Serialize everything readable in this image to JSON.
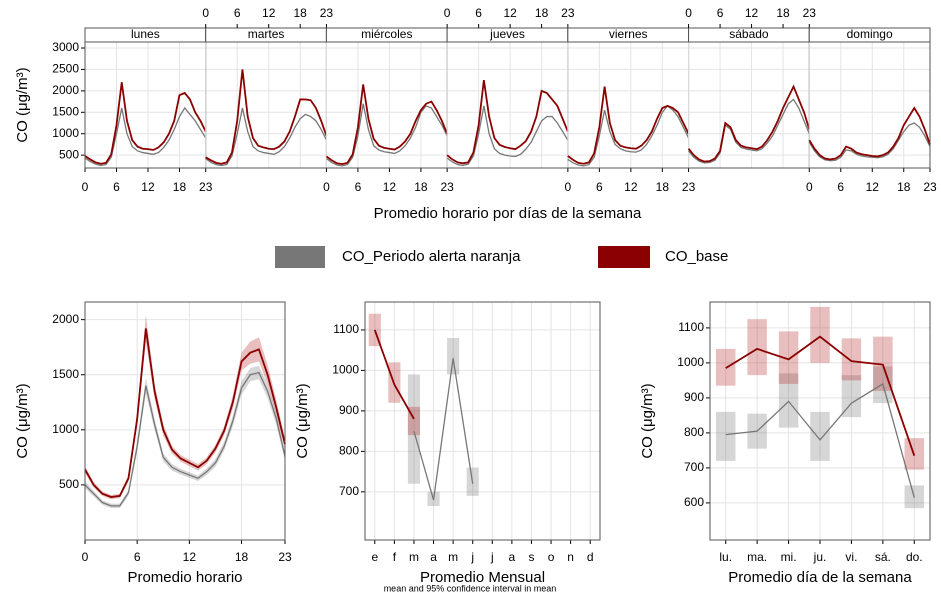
{
  "chart_data": [
    {
      "type": "line",
      "xlabel": "Promedio horario por días de la semana",
      "ylabel": "CO (μg/m³)",
      "facets": [
        "lunes",
        "martes",
        "miércoles",
        "jueves",
        "viernes",
        "sábado",
        "domingo"
      ],
      "x": [
        0,
        1,
        2,
        3,
        4,
        5,
        6,
        7,
        8,
        9,
        10,
        11,
        12,
        13,
        14,
        15,
        16,
        17,
        18,
        19,
        20,
        21,
        22,
        23
      ],
      "xlim": [
        0,
        23
      ],
      "xticks": [
        0,
        6,
        12,
        18,
        23
      ],
      "ylim": [
        200,
        3140
      ],
      "yticks": [
        500,
        1000,
        1500,
        2000,
        2500,
        3000
      ],
      "grid": true,
      "series": [
        {
          "name": "CO_Periodo alerta naranja",
          "color": "#777777",
          "values": [
            [
              430,
              350,
              290,
              260,
              280,
              450,
              1000,
              1600,
              1000,
              700,
              600,
              560,
              540,
              520,
              560,
              680,
              850,
              1100,
              1400,
              1600,
              1450,
              1300,
              1100,
              900
            ],
            [
              420,
              330,
              280,
              260,
              280,
              480,
              1000,
              1600,
              1050,
              700,
              600,
              560,
              540,
              520,
              580,
              700,
              900,
              1150,
              1350,
              1450,
              1400,
              1300,
              1100,
              850
            ],
            [
              420,
              330,
              270,
              250,
              280,
              450,
              950,
              1700,
              1100,
              720,
              620,
              580,
              560,
              540,
              600,
              720,
              900,
              1150,
              1500,
              1650,
              1600,
              1400,
              1200,
              950
            ],
            [
              430,
              340,
              280,
              260,
              290,
              480,
              1000,
              1650,
              1000,
              650,
              540,
              500,
              480,
              470,
              520,
              640,
              800,
              1050,
              1300,
              1400,
              1400,
              1250,
              1050,
              850
            ],
            [
              400,
              320,
              270,
              250,
              280,
              450,
              950,
              1550,
              1050,
              750,
              650,
              600,
              580,
              570,
              620,
              750,
              950,
              1200,
              1500,
              1650,
              1550,
              1400,
              1150,
              900
            ],
            [
              600,
              450,
              360,
              320,
              330,
              380,
              550,
              1200,
              1100,
              800,
              680,
              640,
              620,
              600,
              650,
              780,
              950,
              1200,
              1450,
              1700,
              1800,
              1600,
              1300,
              1000
            ],
            [
              800,
              600,
              460,
              390,
              370,
              380,
              450,
              620,
              600,
              520,
              480,
              460,
              450,
              440,
              460,
              520,
              650,
              850,
              1050,
              1200,
              1250,
              1150,
              950,
              700
            ]
          ]
        },
        {
          "name": "CO_base",
          "color": "#8b0000",
          "values": [
            [
              480,
              400,
              330,
              300,
              320,
              520,
              1200,
              2200,
              1300,
              850,
              700,
              650,
              640,
              620,
              680,
              800,
              1000,
              1300,
              1900,
              1950,
              1800,
              1500,
              1300,
              1050
            ],
            [
              450,
              380,
              320,
              300,
              330,
              560,
              1300,
              2500,
              1400,
              900,
              720,
              680,
              650,
              640,
              700,
              820,
              1050,
              1400,
              1800,
              1800,
              1780,
              1600,
              1300,
              950
            ],
            [
              470,
              380,
              310,
              290,
              320,
              520,
              1150,
              2150,
              1350,
              880,
              720,
              670,
              650,
              630,
              700,
              820,
              1000,
              1300,
              1550,
              1700,
              1750,
              1550,
              1300,
              1000
            ],
            [
              500,
              400,
              330,
              310,
              330,
              560,
              1200,
              2250,
              1400,
              900,
              740,
              690,
              660,
              640,
              720,
              830,
              1050,
              1400,
              2000,
              1950,
              1800,
              1650,
              1350,
              1050
            ],
            [
              480,
              390,
              320,
              300,
              330,
              540,
              1150,
              2100,
              1250,
              850,
              720,
              680,
              660,
              650,
              720,
              850,
              1050,
              1350,
              1600,
              1650,
              1600,
              1500,
              1250,
              1000
            ],
            [
              650,
              500,
              400,
              350,
              360,
              420,
              600,
              1250,
              1150,
              850,
              720,
              680,
              660,
              640,
              700,
              850,
              1050,
              1300,
              1600,
              1850,
              2100,
              1800,
              1500,
              1100
            ],
            [
              850,
              650,
              500,
              420,
              400,
              420,
              500,
              700,
              650,
              560,
              520,
              500,
              480,
              470,
              500,
              560,
              700,
              900,
              1200,
              1400,
              1600,
              1400,
              1100,
              750
            ]
          ]
        }
      ]
    },
    {
      "type": "line",
      "xlabel": "Promedio horario",
      "ylabel": "CO (μg/m³)",
      "x": [
        0,
        1,
        2,
        3,
        4,
        5,
        6,
        7,
        8,
        9,
        10,
        11,
        12,
        13,
        14,
        15,
        16,
        17,
        18,
        19,
        20,
        21,
        22,
        23
      ],
      "xlim": [
        0,
        23
      ],
      "xticks": [
        0,
        6,
        12,
        18,
        23
      ],
      "ylim": [
        0,
        2160
      ],
      "yticks": [
        500,
        1000,
        1500,
        2000
      ],
      "grid": true,
      "series": [
        {
          "color": "#777777",
          "values": [
            500,
            420,
            340,
            310,
            310,
            430,
            850,
            1400,
            1050,
            750,
            660,
            620,
            590,
            560,
            620,
            700,
            850,
            1080,
            1380,
            1500,
            1520,
            1350,
            1100,
            760
          ],
          "lower": [
            470,
            395,
            320,
            290,
            290,
            405,
            800,
            1330,
            1000,
            715,
            630,
            595,
            565,
            535,
            590,
            665,
            810,
            1030,
            1320,
            1440,
            1460,
            1290,
            1045,
            720
          ],
          "upper": [
            530,
            445,
            360,
            330,
            330,
            455,
            900,
            1470,
            1100,
            785,
            690,
            645,
            615,
            585,
            650,
            735,
            890,
            1130,
            1440,
            1560,
            1580,
            1410,
            1155,
            800
          ]
        },
        {
          "color": "#8b0000",
          "values": [
            640,
            500,
            420,
            390,
            400,
            560,
            1100,
            1920,
            1350,
            1000,
            820,
            740,
            700,
            660,
            720,
            830,
            990,
            1250,
            1620,
            1700,
            1730,
            1500,
            1200,
            870
          ],
          "lower": [
            610,
            475,
            400,
            370,
            380,
            530,
            1040,
            1800,
            1280,
            950,
            785,
            710,
            670,
            630,
            690,
            795,
            950,
            1190,
            1540,
            1600,
            1620,
            1410,
            1130,
            820
          ],
          "upper": [
            670,
            525,
            440,
            410,
            420,
            590,
            1160,
            2040,
            1420,
            1050,
            855,
            770,
            730,
            690,
            750,
            865,
            1030,
            1310,
            1700,
            1800,
            1840,
            1590,
            1270,
            920
          ]
        }
      ]
    },
    {
      "type": "line",
      "xlabel": "Promedio Mensual",
      "ylabel": "CO (μg/m³)",
      "categories": [
        "e",
        "f",
        "m",
        "a",
        "m",
        "j",
        "j",
        "a",
        "s",
        "o",
        "n",
        "d"
      ],
      "ylim": [
        581,
        1169
      ],
      "yticks": [
        700,
        800,
        900,
        1000,
        1100
      ],
      "grid": true,
      "series": [
        {
          "color": "#777777",
          "values": [
            null,
            null,
            850,
            680,
            1030,
            720,
            null,
            null,
            null,
            null,
            null,
            null
          ],
          "lower": [
            null,
            null,
            720,
            665,
            990,
            690,
            null,
            null,
            null,
            null,
            null,
            null
          ],
          "upper": [
            null,
            null,
            990,
            700,
            1080,
            760,
            null,
            null,
            null,
            null,
            null,
            null
          ]
        },
        {
          "color": "#8b0000",
          "values": [
            1100,
            965,
            880,
            null,
            null,
            null,
            null,
            null,
            null,
            null,
            null,
            null
          ],
          "lower": [
            1060,
            920,
            840,
            null,
            null,
            null,
            null,
            null,
            null,
            null,
            null,
            null
          ],
          "upper": [
            1140,
            1020,
            910,
            null,
            null,
            null,
            null,
            null,
            null,
            null,
            null,
            null
          ]
        }
      ]
    },
    {
      "type": "line",
      "xlabel": "Promedio día de la semana",
      "ylabel": "CO (μg/m³)",
      "categories": [
        "lu.",
        "ma.",
        "mi.",
        "ju.",
        "vi.",
        "sá.",
        "do."
      ],
      "ylim": [
        494,
        1174
      ],
      "yticks": [
        600,
        700,
        800,
        900,
        1000,
        1100
      ],
      "grid": true,
      "series": [
        {
          "color": "#777777",
          "values": [
            795,
            805,
            890,
            780,
            885,
            940,
            615
          ],
          "lower": [
            720,
            755,
            815,
            720,
            845,
            885,
            585
          ],
          "upper": [
            860,
            855,
            970,
            860,
            965,
            990,
            650
          ]
        },
        {
          "color": "#8b0000",
          "values": [
            985,
            1040,
            1010,
            1075,
            1005,
            995,
            735
          ],
          "lower": [
            935,
            965,
            940,
            1000,
            950,
            920,
            695
          ],
          "upper": [
            1040,
            1125,
            1090,
            1160,
            1070,
            1075,
            785
          ]
        }
      ]
    }
  ],
  "footnote": "mean and 95% confidence interval in mean"
}
